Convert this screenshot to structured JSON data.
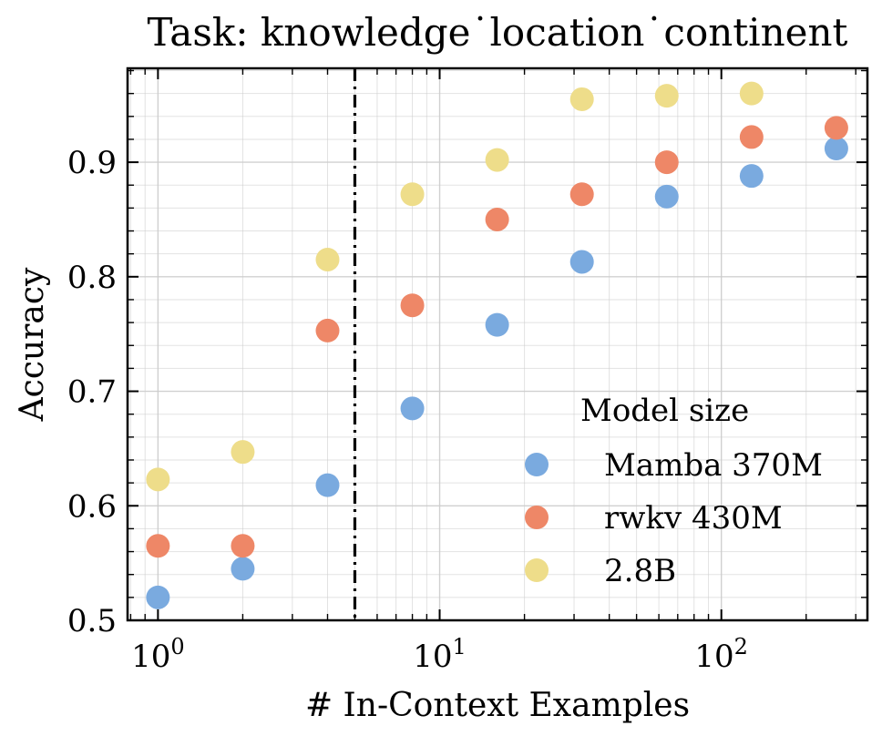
{
  "chart_data": {
    "type": "scatter",
    "title": "Task: knowledge˙location˙continent",
    "xlabel": "# In-Context Examples",
    "ylabel": "Accuracy",
    "xscale": "log",
    "xlim": [
      0.78,
      330
    ],
    "ylim": [
      0.5,
      0.982
    ],
    "x_ticks": [
      {
        "value": 1,
        "base": "10",
        "exp": "0"
      },
      {
        "value": 10,
        "base": "10",
        "exp": "1"
      },
      {
        "value": 100,
        "base": "10",
        "exp": "2"
      }
    ],
    "y_ticks": [
      {
        "value": 0.5,
        "label": "0.5"
      },
      {
        "value": 0.6,
        "label": "0.6"
      },
      {
        "value": 0.7,
        "label": "0.7"
      },
      {
        "value": 0.8,
        "label": "0.8"
      },
      {
        "value": 0.9,
        "label": "0.9"
      }
    ],
    "grid": true,
    "vline": {
      "x": 5,
      "style": "dash-dot"
    },
    "legend": {
      "title": "Model size",
      "position": "lower-right"
    },
    "x": [
      1,
      2,
      4,
      8,
      16,
      32,
      64,
      128,
      256
    ],
    "series": [
      {
        "name": "Mamba 370M",
        "color": "#7aaadf",
        "values": [
          0.52,
          0.545,
          0.618,
          0.685,
          0.758,
          0.813,
          0.87,
          0.888,
          0.912
        ]
      },
      {
        "name": "rwkv 430M",
        "color": "#ee8767",
        "values": [
          0.565,
          0.565,
          0.753,
          0.775,
          0.85,
          0.872,
          0.9,
          0.922,
          0.93
        ]
      },
      {
        "name": "2.8B",
        "color": "#eedd8a",
        "values": [
          0.623,
          0.647,
          0.815,
          0.872,
          0.902,
          0.955,
          0.958,
          0.96,
          null
        ]
      }
    ]
  }
}
